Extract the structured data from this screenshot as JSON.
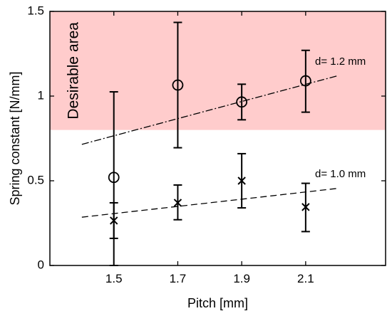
{
  "chart_data": {
    "type": "scatter",
    "xlabel": "Pitch [mm]",
    "ylabel": "Spring constant [N/mm]",
    "xlim": [
      1.3,
      2.35
    ],
    "ylim": [
      0,
      1.5
    ],
    "x_ticks": [
      1.5,
      1.7,
      1.9,
      2.1
    ],
    "x_tick_labels": [
      "1.5",
      "1.7",
      "1.9",
      "2.1"
    ],
    "y_ticks": [
      0,
      0.5,
      1,
      1.5
    ],
    "y_tick_labels": [
      "0",
      "0.5",
      "1",
      "1.5"
    ],
    "grid": false,
    "shaded_region": {
      "label": "Desirable area",
      "y_from": 0.8,
      "y_to": 1.5,
      "color": "#ffcccc"
    },
    "series": [
      {
        "label": "d= 1.2 mm",
        "marker": "circle",
        "x": [
          1.5,
          1.7,
          1.9,
          2.1
        ],
        "y": [
          0.52,
          1.065,
          0.965,
          1.09
        ],
        "err_low": [
          0.0,
          0.695,
          0.86,
          0.905
        ],
        "err_high": [
          1.025,
          1.435,
          1.07,
          1.27
        ],
        "trend": {
          "style": "dash-dot",
          "x": [
            1.4,
            2.2
          ],
          "y": [
            0.715,
            1.12
          ]
        }
      },
      {
        "label": "d= 1.0 mm",
        "marker": "cross",
        "x": [
          1.5,
          1.7,
          1.9,
          2.1
        ],
        "y": [
          0.265,
          0.37,
          0.5,
          0.345
        ],
        "err_low": [
          0.16,
          0.27,
          0.34,
          0.2
        ],
        "err_high": [
          0.37,
          0.475,
          0.66,
          0.485
        ],
        "trend": {
          "style": "dashed",
          "x": [
            1.4,
            2.2
          ],
          "y": [
            0.285,
            0.455
          ]
        }
      }
    ]
  }
}
